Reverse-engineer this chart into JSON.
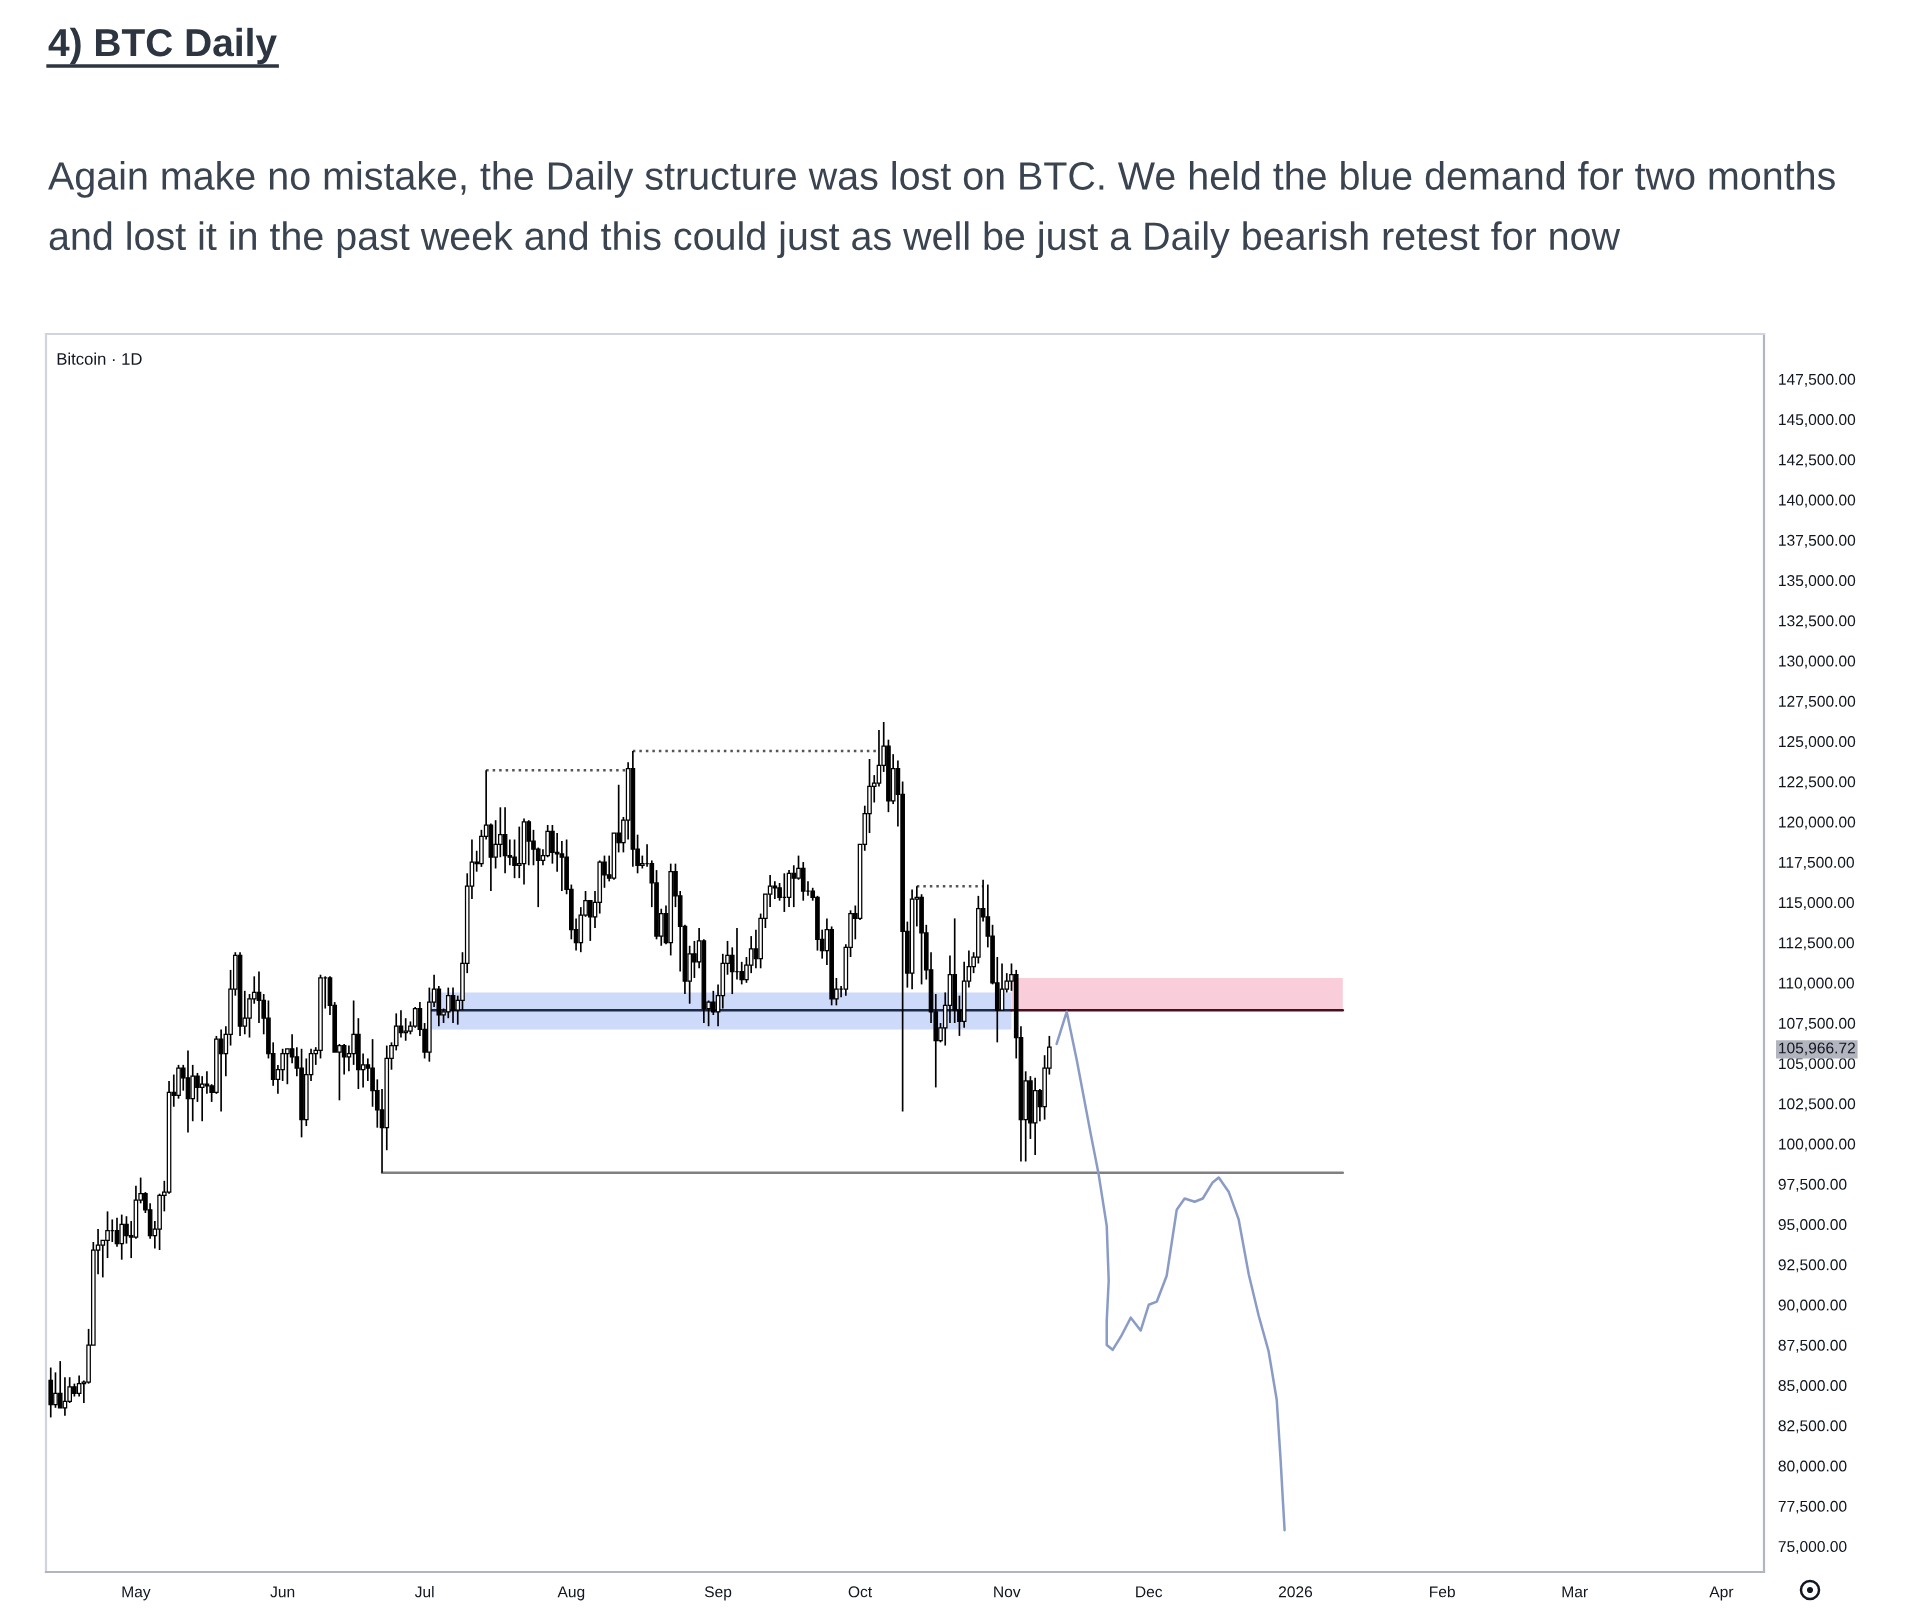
{
  "chart_data": {
    "type": "candlestick",
    "title": "4) BTC Daily",
    "subtitle": "Again make no mistake, the Daily structure was lost on BTC. We held the blue demand for two months and lost it in the past week and this could just as well be just a Daily bearish retest for now",
    "color": "#000000",
    "x": [
      "2025-04-13",
      "2025-04-14",
      "2025-04-15",
      "2025-04-16",
      "2025-04-17",
      "2025-04-18",
      "2025-04-19",
      "2025-04-20",
      "2025-04-21",
      "2025-04-22",
      "2025-04-23",
      "2025-04-24",
      "2025-04-25",
      "2025-04-26",
      "2025-04-27",
      "2025-04-28",
      "2025-04-29",
      "2025-04-30",
      "2025-05-01",
      "2025-05-02",
      "2025-05-03",
      "2025-05-04",
      "2025-05-05",
      "2025-05-06",
      "2025-05-07",
      "2025-05-08",
      "2025-05-09",
      "2025-05-10",
      "2025-05-11",
      "2025-05-12",
      "2025-05-13",
      "2025-05-14",
      "2025-05-15",
      "2025-05-16",
      "2025-05-17",
      "2025-05-18",
      "2025-05-19",
      "2025-05-20",
      "2025-05-21",
      "2025-05-22",
      "2025-05-23",
      "2025-05-24",
      "2025-05-25",
      "2025-05-26",
      "2025-05-27",
      "2025-05-28",
      "2025-05-29",
      "2025-05-30",
      "2025-05-31",
      "2025-06-01",
      "2025-06-02",
      "2025-06-03",
      "2025-06-04",
      "2025-06-05",
      "2025-06-06",
      "2025-06-07",
      "2025-06-08",
      "2025-06-09",
      "2025-06-10",
      "2025-06-11",
      "2025-06-12",
      "2025-06-13",
      "2025-06-14",
      "2025-06-15",
      "2025-06-16",
      "2025-06-17",
      "2025-06-18",
      "2025-06-19",
      "2025-06-20",
      "2025-06-21",
      "2025-06-22",
      "2025-06-23",
      "2025-06-24",
      "2025-06-25",
      "2025-06-26",
      "2025-06-27",
      "2025-06-28",
      "2025-06-29",
      "2025-06-30",
      "2025-07-01",
      "2025-07-02",
      "2025-07-03",
      "2025-07-04",
      "2025-07-05",
      "2025-07-06",
      "2025-07-07",
      "2025-07-08",
      "2025-07-09",
      "2025-07-10",
      "2025-07-11",
      "2025-07-12",
      "2025-07-13",
      "2025-07-14",
      "2025-07-15",
      "2025-07-16",
      "2025-07-17",
      "2025-07-18",
      "2025-07-19",
      "2025-07-20",
      "2025-07-21",
      "2025-07-22",
      "2025-07-23",
      "2025-07-24",
      "2025-07-25",
      "2025-07-26",
      "2025-07-27",
      "2025-07-28",
      "2025-07-29",
      "2025-07-30",
      "2025-07-31",
      "2025-08-01",
      "2025-08-02",
      "2025-08-03",
      "2025-08-04",
      "2025-08-05",
      "2025-08-06",
      "2025-08-07",
      "2025-08-08",
      "2025-08-09",
      "2025-08-10",
      "2025-08-11",
      "2025-08-12",
      "2025-08-13",
      "2025-08-14",
      "2025-08-15",
      "2025-08-16",
      "2025-08-17",
      "2025-08-18",
      "2025-08-19",
      "2025-08-20",
      "2025-08-21",
      "2025-08-22",
      "2025-08-23",
      "2025-08-24",
      "2025-08-25",
      "2025-08-26",
      "2025-08-27",
      "2025-08-28",
      "2025-08-29",
      "2025-08-30",
      "2025-08-31",
      "2025-09-01",
      "2025-09-02",
      "2025-09-03",
      "2025-09-04",
      "2025-09-05",
      "2025-09-06",
      "2025-09-07",
      "2025-09-08",
      "2025-09-09",
      "2025-09-10",
      "2025-09-11",
      "2025-09-12",
      "2025-09-13",
      "2025-09-14",
      "2025-09-15",
      "2025-09-16",
      "2025-09-17",
      "2025-09-18",
      "2025-09-19",
      "2025-09-20",
      "2025-09-21",
      "2025-09-22",
      "2025-09-23",
      "2025-09-24",
      "2025-09-25",
      "2025-09-26",
      "2025-09-27",
      "2025-09-28",
      "2025-09-29",
      "2025-09-30",
      "2025-10-01",
      "2025-10-02",
      "2025-10-03",
      "2025-10-04",
      "2025-10-05",
      "2025-10-06",
      "2025-10-07",
      "2025-10-08",
      "2025-10-09",
      "2025-10-10",
      "2025-10-11",
      "2025-10-12",
      "2025-10-13",
      "2025-10-14",
      "2025-10-15",
      "2025-10-16",
      "2025-10-17",
      "2025-10-18",
      "2025-10-19",
      "2025-10-20",
      "2025-10-21",
      "2025-10-22",
      "2025-10-23",
      "2025-10-24",
      "2025-10-25",
      "2025-10-26",
      "2025-10-27",
      "2025-10-28",
      "2025-10-29",
      "2025-10-30",
      "2025-10-31",
      "2025-11-01",
      "2025-11-02",
      "2025-11-03",
      "2025-11-04",
      "2025-11-05",
      "2025-11-06",
      "2025-11-07",
      "2025-11-08",
      "2025-11-09",
      "2025-11-10"
    ],
    "ohlc": [
      [
        85300,
        86100,
        83000,
        83800
      ],
      [
        83800,
        85800,
        83600,
        84500
      ],
      [
        84500,
        86500,
        83600,
        83600
      ],
      [
        83600,
        85500,
        83100,
        84000
      ],
      [
        84000,
        85500,
        83900,
        84900
      ],
      [
        84900,
        85100,
        84300,
        84500
      ],
      [
        84500,
        85600,
        84300,
        85100
      ],
      [
        85100,
        85300,
        83900,
        85200
      ],
      [
        85200,
        88500,
        85100,
        87500
      ],
      [
        87500,
        93900,
        87500,
        93400
      ],
      [
        93400,
        94700,
        91900,
        93700
      ],
      [
        93700,
        94000,
        91700,
        94000
      ],
      [
        94000,
        95800,
        92900,
        94600
      ],
      [
        94600,
        95300,
        93900,
        94600
      ],
      [
        94600,
        95400,
        93600,
        93800
      ],
      [
        93800,
        95600,
        92800,
        95000
      ],
      [
        95000,
        95500,
        93800,
        94300
      ],
      [
        94300,
        95200,
        92900,
        94200
      ],
      [
        94200,
        97400,
        94100,
        96500
      ],
      [
        96500,
        97900,
        96300,
        96900
      ],
      [
        96900,
        97000,
        95700,
        95900
      ],
      [
        95900,
        96300,
        94100,
        94300
      ],
      [
        94300,
        95200,
        93500,
        94700
      ],
      [
        94700,
        96900,
        93400,
        96800
      ],
      [
        96800,
        97700,
        95800,
        97000
      ],
      [
        97000,
        103900,
        96900,
        103200
      ],
      [
        103200,
        104300,
        102300,
        103000
      ],
      [
        103000,
        104900,
        102800,
        104700
      ],
      [
        104700,
        104900,
        103300,
        104100
      ],
      [
        104100,
        105800,
        100700,
        102800
      ],
      [
        102800,
        104900,
        101400,
        104200
      ],
      [
        104200,
        104400,
        102600,
        103500
      ],
      [
        103500,
        104200,
        101400,
        103700
      ],
      [
        103700,
        104500,
        103100,
        103600
      ],
      [
        103600,
        103700,
        102600,
        103200
      ],
      [
        103200,
        106700,
        103100,
        106500
      ],
      [
        106500,
        107100,
        102000,
        105600
      ],
      [
        105600,
        107300,
        104200,
        106800
      ],
      [
        106800,
        110800,
        106100,
        109600
      ],
      [
        109600,
        111900,
        109200,
        111700
      ],
      [
        111700,
        111900,
        106700,
        107300
      ],
      [
        107300,
        109500,
        106800,
        107800
      ],
      [
        107800,
        109300,
        106600,
        109000
      ],
      [
        109000,
        110400,
        108700,
        109400
      ],
      [
        109400,
        110700,
        107500,
        108900
      ],
      [
        108900,
        109300,
        106800,
        107800
      ],
      [
        107800,
        108900,
        105300,
        105600
      ],
      [
        105600,
        106300,
        103600,
        104000
      ],
      [
        104000,
        104900,
        103100,
        104600
      ],
      [
        104600,
        105900,
        103900,
        105600
      ],
      [
        105600,
        105900,
        103700,
        105900
      ],
      [
        105900,
        106800,
        105000,
        105400
      ],
      [
        105400,
        106000,
        104200,
        104700
      ],
      [
        104700,
        105900,
        100400,
        101500
      ],
      [
        101500,
        105300,
        101100,
        104300
      ],
      [
        104300,
        105900,
        103900,
        105600
      ],
      [
        105600,
        106000,
        104900,
        105800
      ],
      [
        105800,
        110500,
        105300,
        110300
      ],
      [
        110300,
        110400,
        108400,
        110300
      ],
      [
        110300,
        110400,
        108000,
        108600
      ],
      [
        108600,
        108800,
        105700,
        105700
      ],
      [
        105700,
        106200,
        102700,
        106100
      ],
      [
        106100,
        106200,
        104300,
        105400
      ],
      [
        105400,
        106100,
        104500,
        105600
      ],
      [
        105600,
        108900,
        104900,
        106800
      ],
      [
        106800,
        107800,
        103400,
        104600
      ],
      [
        104600,
        105600,
        103500,
        104900
      ],
      [
        104900,
        105300,
        103900,
        104700
      ],
      [
        104700,
        106500,
        102300,
        103300
      ],
      [
        103300,
        104000,
        101000,
        102100
      ],
      [
        102100,
        103400,
        98200,
        101000
      ],
      [
        101000,
        106100,
        99600,
        105300
      ],
      [
        105300,
        106300,
        104600,
        106100
      ],
      [
        106100,
        108100,
        105800,
        107300
      ],
      [
        107300,
        108300,
        106600,
        106900
      ],
      [
        106900,
        107800,
        106400,
        107000
      ],
      [
        107000,
        107600,
        106800,
        107300
      ],
      [
        107300,
        108500,
        107200,
        108400
      ],
      [
        108400,
        108800,
        106700,
        107100
      ],
      [
        107100,
        107500,
        105300,
        105700
      ],
      [
        105700,
        109700,
        105100,
        108800
      ],
      [
        108800,
        110500,
        108500,
        109600
      ],
      [
        109600,
        109800,
        107300,
        108000
      ],
      [
        108000,
        108400,
        107500,
        108200
      ],
      [
        108200,
        109700,
        107800,
        109200
      ],
      [
        109200,
        109700,
        107500,
        108300
      ],
      [
        108300,
        109200,
        107400,
        108900
      ],
      [
        108900,
        111900,
        108300,
        111200
      ],
      [
        111200,
        116800,
        110600,
        116000
      ],
      [
        116000,
        118900,
        115200,
        117500
      ],
      [
        117500,
        118200,
        116900,
        117400
      ],
      [
        117400,
        119500,
        117200,
        119100
      ],
      [
        119100,
        123200,
        118900,
        119800
      ],
      [
        119800,
        119900,
        115700,
        117800
      ],
      [
        117800,
        120100,
        117100,
        118600
      ],
      [
        118600,
        120900,
        117800,
        119200
      ],
      [
        119200,
        120900,
        116800,
        117900
      ],
      [
        117900,
        118900,
        117300,
        117800
      ],
      [
        117800,
        118900,
        116500,
        117300
      ],
      [
        117300,
        119700,
        116500,
        117400
      ],
      [
        117400,
        120200,
        116100,
        120000
      ],
      [
        120000,
        120100,
        117300,
        118800
      ],
      [
        118800,
        119500,
        117300,
        118300
      ],
      [
        118300,
        118400,
        114700,
        117600
      ],
      [
        117600,
        118300,
        117300,
        117900
      ],
      [
        117900,
        119800,
        117800,
        119400
      ],
      [
        119400,
        119800,
        117400,
        118100
      ],
      [
        118100,
        119300,
        116900,
        118000
      ],
      [
        118000,
        118800,
        115700,
        117800
      ],
      [
        117800,
        118900,
        115500,
        115800
      ],
      [
        115800,
        116100,
        112700,
        113300
      ],
      [
        113300,
        114000,
        112000,
        112500
      ],
      [
        112500,
        114700,
        111900,
        114200
      ],
      [
        114200,
        115700,
        114100,
        115100
      ],
      [
        115100,
        115100,
        112600,
        114100
      ],
      [
        114100,
        115700,
        113400,
        115000
      ],
      [
        115000,
        117600,
        114300,
        117500
      ],
      [
        117500,
        117900,
        115900,
        116700
      ],
      [
        116700,
        117900,
        116300,
        116500
      ],
      [
        116500,
        119300,
        116400,
        119300
      ],
      [
        119300,
        122300,
        118100,
        118700
      ],
      [
        118700,
        120300,
        118100,
        120100
      ],
      [
        120100,
        123700,
        118900,
        123300
      ],
      [
        123300,
        124400,
        117200,
        118300
      ],
      [
        118300,
        119200,
        116800,
        117300
      ],
      [
        117300,
        117900,
        117100,
        117400
      ],
      [
        117400,
        118600,
        117200,
        117400
      ],
      [
        117400,
        117600,
        114700,
        116200
      ],
      [
        116200,
        117000,
        112700,
        112900
      ],
      [
        112900,
        114600,
        112300,
        114300
      ],
      [
        114300,
        114800,
        112400,
        112500
      ],
      [
        112500,
        117400,
        111700,
        116900
      ],
      [
        116900,
        117400,
        114700,
        115400
      ],
      [
        115400,
        115700,
        110700,
        113500
      ],
      [
        113500,
        113600,
        109300,
        110100
      ],
      [
        110100,
        112300,
        108700,
        111800
      ],
      [
        111800,
        112600,
        110300,
        111300
      ],
      [
        111300,
        113400,
        110900,
        112600
      ],
      [
        112600,
        112700,
        107500,
        108400
      ],
      [
        108400,
        108900,
        107300,
        108800
      ],
      [
        108800,
        109500,
        108000,
        108200
      ],
      [
        108200,
        109900,
        107300,
        109200
      ],
      [
        109200,
        111800,
        108400,
        111200
      ],
      [
        111200,
        112600,
        110500,
        111700
      ],
      [
        111700,
        112200,
        109300,
        110700
      ],
      [
        110700,
        113400,
        110200,
        110700
      ],
      [
        110700,
        111300,
        109900,
        110200
      ],
      [
        110200,
        111600,
        110000,
        111100
      ],
      [
        111100,
        112900,
        110600,
        112100
      ],
      [
        112100,
        113300,
        110900,
        111500
      ],
      [
        111500,
        114300,
        110900,
        114000
      ],
      [
        114000,
        115500,
        113400,
        115500
      ],
      [
        115500,
        116700,
        114700,
        116000
      ],
      [
        116000,
        116300,
        115200,
        115900
      ],
      [
        115900,
        116200,
        115100,
        115300
      ],
      [
        115300,
        116800,
        114400,
        115300
      ],
      [
        115300,
        117000,
        114700,
        116800
      ],
      [
        116800,
        117300,
        114700,
        116500
      ],
      [
        116500,
        117900,
        116400,
        117100
      ],
      [
        117100,
        117500,
        115100,
        115700
      ],
      [
        115700,
        116300,
        115400,
        115700
      ],
      [
        115700,
        115900,
        115100,
        115300
      ],
      [
        115300,
        115400,
        112000,
        112700
      ],
      [
        112700,
        113300,
        111500,
        112000
      ],
      [
        112000,
        114000,
        111100,
        113300
      ],
      [
        113300,
        113500,
        108600,
        109000
      ],
      [
        109000,
        110300,
        108600,
        109600
      ],
      [
        109600,
        109800,
        109100,
        109600
      ],
      [
        109600,
        112400,
        109200,
        112200
      ],
      [
        112200,
        114500,
        111600,
        114300
      ],
      [
        114300,
        114800,
        112700,
        114000
      ],
      [
        114000,
        118600,
        113900,
        118600
      ],
      [
        118600,
        121000,
        118200,
        120500
      ],
      [
        120500,
        123900,
        119300,
        122200
      ],
      [
        122200,
        122900,
        121200,
        122400
      ],
      [
        122400,
        125700,
        122200,
        123500
      ],
      [
        123500,
        126200,
        123100,
        124700
      ],
      [
        124700,
        125100,
        120600,
        121300
      ],
      [
        121300,
        124200,
        121100,
        123300
      ],
      [
        123300,
        123800,
        119700,
        121700
      ],
      [
        121700,
        122500,
        102000,
        113200
      ],
      [
        113200,
        113800,
        109700,
        110600
      ],
      [
        110600,
        115800,
        109600,
        115200
      ],
      [
        115200,
        116000,
        113500,
        115300
      ],
      [
        115300,
        115500,
        109900,
        113100
      ],
      [
        113100,
        113600,
        110200,
        110800
      ],
      [
        110800,
        111900,
        107500,
        108200
      ],
      [
        108200,
        109300,
        103500,
        106400
      ],
      [
        106400,
        107500,
        106300,
        107200
      ],
      [
        107200,
        109400,
        106100,
        108600
      ],
      [
        108600,
        111700,
        107500,
        110500
      ],
      [
        110500,
        114000,
        107500,
        108300
      ],
      [
        108300,
        109200,
        106700,
        107600
      ],
      [
        107600,
        111300,
        107200,
        110100
      ],
      [
        110100,
        112000,
        109700,
        111000
      ],
      [
        111000,
        111900,
        110600,
        111600
      ],
      [
        111600,
        115400,
        111200,
        114600
      ],
      [
        114600,
        116400,
        113800,
        114100
      ],
      [
        114100,
        116100,
        112200,
        112900
      ],
      [
        112900,
        113600,
        109900,
        110000
      ],
      [
        110000,
        111600,
        106300,
        108300
      ],
      [
        108300,
        111200,
        108300,
        109600
      ],
      [
        109600,
        110600,
        109400,
        110100
      ],
      [
        110100,
        111200,
        109500,
        110500
      ],
      [
        110500,
        110800,
        105300,
        106600
      ],
      [
        106600,
        107300,
        98900,
        101500
      ],
      [
        101500,
        104500,
        98900,
        103900
      ],
      [
        103900,
        104200,
        100300,
        101300
      ],
      [
        101300,
        104100,
        99300,
        103300
      ],
      [
        103300,
        103400,
        101400,
        102300
      ],
      [
        102300,
        105500,
        101500,
        104700
      ],
      [
        104700,
        106700,
        104300,
        106000
      ]
    ],
    "series": [
      {
        "type": "line",
        "color": "#1f2a44",
        "x": [
          "2025-07-02",
          "2025-11-02"
        ],
        "values": [
          108300,
          108300
        ],
        "lower": [
          107100,
          107100
        ],
        "upper": [
          109400,
          109400
        ]
      },
      {
        "type": "line",
        "color": "#4a1020",
        "x": [
          "2025-11-02",
          "2026-01-11"
        ],
        "values": [
          108300,
          108300
        ],
        "lower": [
          108300,
          108300
        ],
        "upper": [
          110300,
          110300
        ]
      },
      {
        "type": "line",
        "color": "#808080",
        "x": [
          "2025-06-22",
          "2026-01-11"
        ],
        "values": [
          98200,
          98200
        ]
      },
      {
        "type": "line",
        "color": "#555555",
        "line_style": "dotted",
        "x": [
          "2025-07-14",
          "2025-08-13"
        ],
        "values": [
          123200,
          123200
        ]
      },
      {
        "type": "line",
        "color": "#555555",
        "line_style": "dotted",
        "x": [
          "2025-08-14",
          "2025-10-05"
        ],
        "values": [
          124400,
          124400
        ]
      },
      {
        "type": "line",
        "color": "#555555",
        "line_style": "dotted",
        "x": [
          "2025-10-13",
          "2025-10-27"
        ],
        "values": [
          116000,
          116000
        ]
      },
      {
        "type": "line",
        "color": "#8a9bc6",
        "x": [
          "2025-11-11T13:00",
          "2025-11-13T16:00",
          "2025-11-15T19:00",
          "2025-11-18T18:00",
          "2025-11-20T10:00",
          "2025-11-22T03:00",
          "2025-11-22T13:00",
          "2025-11-22T03:00",
          "2025-11-22T03:00",
          "2025-11-23T09:00",
          "2025-11-25T02:00",
          "2025-11-27T05:00",
          "2025-11-29T07:00",
          "2025-12-01T00:00",
          "2025-12-02T17:00",
          "2025-12-04T19:00",
          "2025-12-06T22:00",
          "2025-12-08T14:00",
          "2025-12-10T17:00",
          "2025-12-12T10:00",
          "2025-12-14T12:00",
          "2025-12-15T19:00",
          "2025-12-17T22:00",
          "2025-12-20T00:00",
          "2025-12-22T03:00",
          "2025-12-24T06:00",
          "2025-12-26T08:00",
          "2025-12-28T01:00",
          "2025-12-28T21:00",
          "2025-12-29T07:00",
          "2025-12-29T17:00"
        ],
        "values": [
          106200,
          108200,
          105200,
          100600,
          98100,
          94900,
          91500,
          89000,
          87500,
          87200,
          88000,
          89200,
          88400,
          90000,
          90200,
          91800,
          95900,
          96600,
          96400,
          96600,
          97600,
          97900,
          97000,
          95300,
          91900,
          89300,
          87100,
          84100,
          80300,
          78100,
          76000
        ]
      }
    ],
    "xlim": [
      "2025-04-12",
      "2026-04-10"
    ],
    "ylim": [
      73400,
      150300
    ],
    "xticks": [
      {
        "value": "2025-05-01",
        "label": "May"
      },
      {
        "value": "2025-06-01",
        "label": "Jun"
      },
      {
        "value": "2025-07-01",
        "label": "Jul"
      },
      {
        "value": "2025-08-01",
        "label": "Aug"
      },
      {
        "value": "2025-09-01",
        "label": "Sep"
      },
      {
        "value": "2025-10-01",
        "label": "Oct"
      },
      {
        "value": "2025-11-01",
        "label": "Nov"
      },
      {
        "value": "2025-12-01",
        "label": "Dec"
      },
      {
        "value": "2026-01-01",
        "label": "2026"
      },
      {
        "value": "2026-02-01",
        "label": "Feb"
      },
      {
        "value": "2026-03-01",
        "label": "Mar"
      },
      {
        "value": "2026-04-01",
        "label": "Apr"
      }
    ],
    "yticks": [
      {
        "value": 75000,
        "label": "75,000.00"
      },
      {
        "value": 77500,
        "label": "77,500.00"
      },
      {
        "value": 80000,
        "label": "80,000.00"
      },
      {
        "value": 82500,
        "label": "82,500.00"
      },
      {
        "value": 85000,
        "label": "85,000.00"
      },
      {
        "value": 87500,
        "label": "87,500.00"
      },
      {
        "value": 90000,
        "label": "90,000.00"
      },
      {
        "value": 92500,
        "label": "92,500.00"
      },
      {
        "value": 95000,
        "label": "95,000.00"
      },
      {
        "value": 97500,
        "label": "97,500.00"
      },
      {
        "value": 100000,
        "label": "100,000.00"
      },
      {
        "value": 102500,
        "label": "102,500.00"
      },
      {
        "value": 105000,
        "label": "105,000.00"
      },
      {
        "value": 105966.72,
        "label": "105,966.72"
      },
      {
        "value": 107500,
        "label": "107,500.00"
      },
      {
        "value": 110000,
        "label": "110,000.00"
      },
      {
        "value": 112500,
        "label": "112,500.00"
      },
      {
        "value": 115000,
        "label": "115,000.00"
      },
      {
        "value": 117500,
        "label": "117,500.00"
      },
      {
        "value": 120000,
        "label": "120,000.00"
      },
      {
        "value": 122500,
        "label": "122,500.00"
      },
      {
        "value": 125000,
        "label": "125,000.00"
      },
      {
        "value": 127500,
        "label": "127,500.00"
      },
      {
        "value": 130000,
        "label": "130,000.00"
      },
      {
        "value": 132500,
        "label": "132,500.00"
      },
      {
        "value": 135000,
        "label": "135,000.00"
      },
      {
        "value": 137500,
        "label": "137,500.00"
      },
      {
        "value": 140000,
        "label": "140,000.00"
      },
      {
        "value": 142500,
        "label": "142,500.00"
      },
      {
        "value": 145000,
        "label": "145,000.00"
      },
      {
        "value": 147500,
        "label": "147,500.00"
      }
    ],
    "annotations": [
      "Bitcoin · 1D"
    ]
  }
}
